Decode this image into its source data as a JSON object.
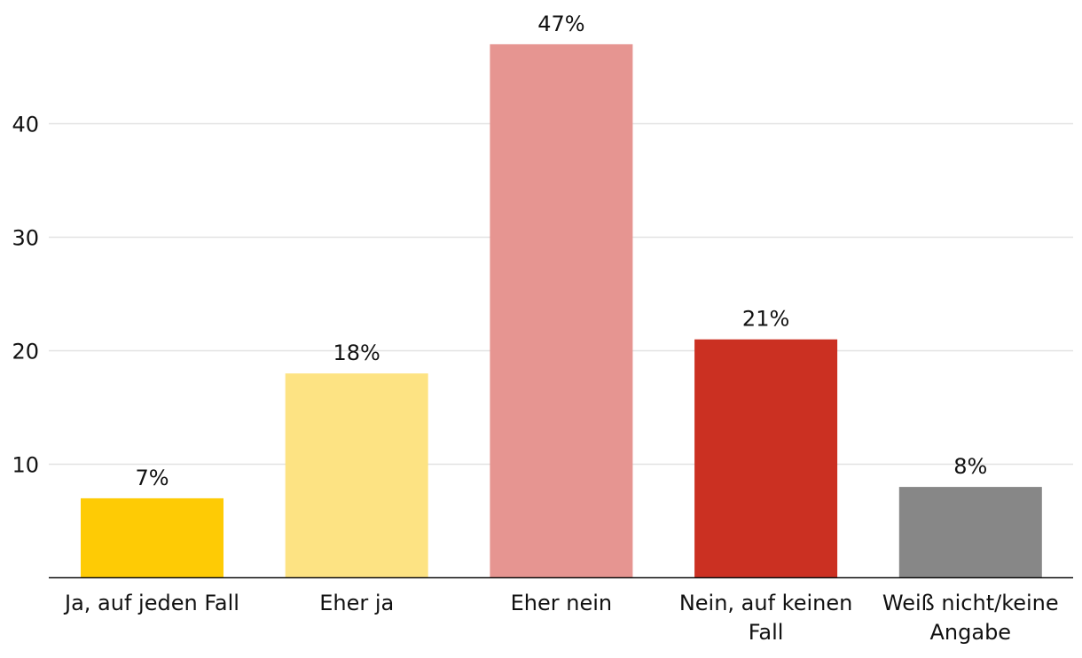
{
  "chart_data": {
    "type": "bar",
    "title": "",
    "xlabel": "",
    "ylabel": "",
    "categories": [
      [
        "Ja, auf jeden Fall"
      ],
      [
        "Eher ja"
      ],
      [
        "Eher nein"
      ],
      [
        "Nein, auf keinen",
        "Fall"
      ],
      [
        "Weiß nicht/keine",
        "Angabe"
      ]
    ],
    "values": [
      7,
      18,
      47,
      21,
      8
    ],
    "value_labels": [
      "7%",
      "18%",
      "47%",
      "21%",
      "8%"
    ],
    "colors": [
      "#fecb05",
      "#fde383",
      "#e69591",
      "#cb3022",
      "#878787"
    ],
    "yticks": [
      10,
      20,
      30,
      40
    ],
    "ylim": [
      0,
      47
    ],
    "grid": true,
    "legend": "none"
  }
}
